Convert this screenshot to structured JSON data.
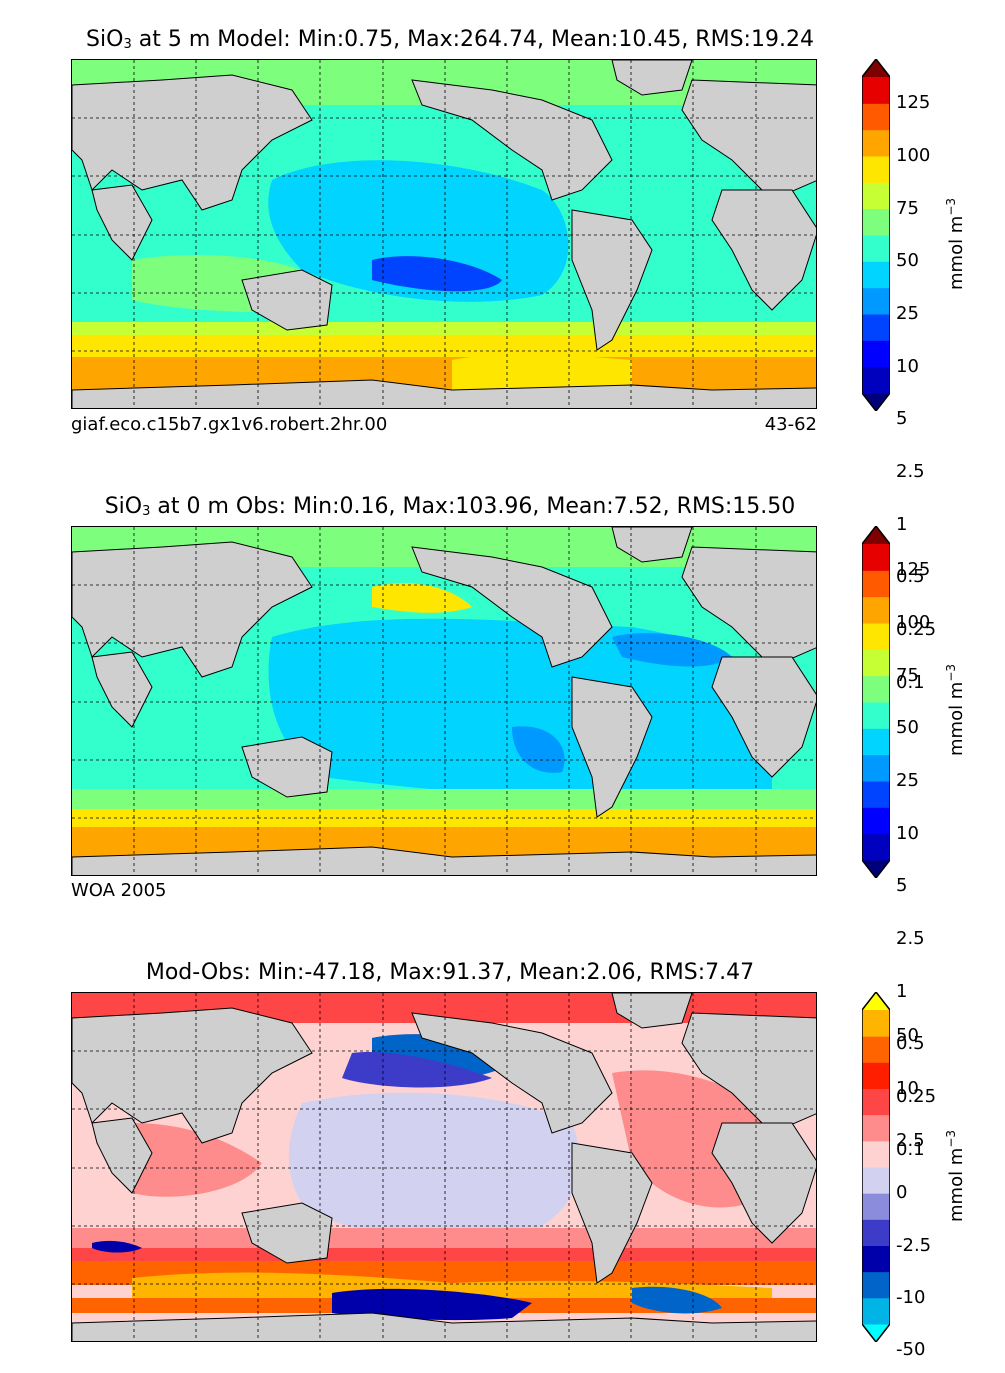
{
  "panels": [
    {
      "title_prefix": "SiO",
      "title_sub": "3",
      "title_rest": "at 5 m Model: Min:0.75, Max:264.74, Mean:10.45, RMS:19.24",
      "left_label": "giaf.eco.c15b7.gx1v6.robert.2hr.00",
      "right_label": "43-62",
      "colorbar": {
        "units_base": "mmol m",
        "units_exp": "−3",
        "ticks": [
          "125",
          "100",
          "75",
          "50",
          "25",
          "10",
          "5",
          "2.5",
          "1",
          "0.5",
          "0.25",
          "0.1"
        ],
        "colors": [
          "#00007a",
          "#0000bf",
          "#0000ff",
          "#0044ff",
          "#0099ff",
          "#00d4ff",
          "#33ffcc",
          "#7dff7d",
          "#c6ff33",
          "#ffe600",
          "#ffa500",
          "#ff5a00",
          "#e60000",
          "#7f0000"
        ]
      }
    },
    {
      "title_prefix": "SiO",
      "title_sub": "3",
      "title_rest": "at 0 m Obs: Min:0.16, Max:103.96, Mean:7.52, RMS:15.50",
      "left_label": "WOA 2005",
      "right_label": "",
      "colorbar": {
        "units_base": "mmol m",
        "units_exp": "−3",
        "ticks": [
          "125",
          "100",
          "75",
          "50",
          "25",
          "10",
          "5",
          "2.5",
          "1",
          "0.5",
          "0.25",
          "0.1"
        ],
        "colors": [
          "#00007a",
          "#0000bf",
          "#0000ff",
          "#0044ff",
          "#0099ff",
          "#00d4ff",
          "#33ffcc",
          "#7dff7d",
          "#c6ff33",
          "#ffe600",
          "#ffa500",
          "#ff5a00",
          "#e60000",
          "#7f0000"
        ]
      }
    },
    {
      "title_prefix": "",
      "title_sub": "",
      "title_rest": "Mod-Obs: Min:-47.18, Max:91.37, Mean:2.06, RMS:7.47",
      "left_label": "",
      "right_label": "",
      "colorbar": {
        "units_base": "mmol m",
        "units_exp": "−3",
        "ticks": [
          "50",
          "10",
          "2.5",
          "0",
          "-2.5",
          "-10",
          "-50"
        ],
        "colors": [
          "#00ffff",
          "#00b4e6",
          "#0064c8",
          "#0000aa",
          "#3c3cc8",
          "#8c8cdc",
          "#d2d2f0",
          "#ffd2d2",
          "#ff8c8c",
          "#ff4646",
          "#ff1e00",
          "#ff6400",
          "#ffb400",
          "#ffff00"
        ]
      }
    }
  ],
  "colors": {
    "land": "#cfcfcf",
    "ocean_mid": "#00d4ff",
    "ocean_green": "#33ffcc",
    "southern_orange": "#ffa500",
    "southern_yellow": "#ffe600",
    "diff_red": "#ff4646",
    "diff_pink": "#ffd2d2",
    "diff_lav": "#d2d2f0",
    "diff_blue": "#0064c8"
  }
}
